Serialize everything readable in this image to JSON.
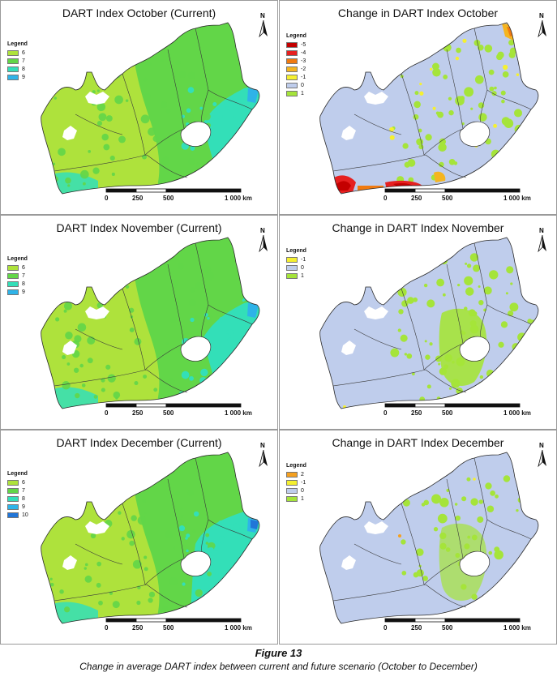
{
  "panels": [
    {
      "title": "DART Index October (Current)",
      "legend_title": "Legend",
      "variant": "current",
      "legend": [
        {
          "label": "6",
          "color": "#aee23c"
        },
        {
          "label": "7",
          "color": "#62d648"
        },
        {
          "label": "8",
          "color": "#33dfb8"
        },
        {
          "label": "9",
          "color": "#2fb3e8"
        }
      ]
    },
    {
      "title": "Change in DART Index October",
      "legend_title": "Legend",
      "variant": "change",
      "legend": [
        {
          "label": "-5",
          "color": "#c40000"
        },
        {
          "label": "-4",
          "color": "#e62020"
        },
        {
          "label": "-3",
          "color": "#f07a10"
        },
        {
          "label": "-2",
          "color": "#f5b520"
        },
        {
          "label": "-1",
          "color": "#f5f030"
        },
        {
          "label": "0",
          "color": "#bfcdec"
        },
        {
          "label": "1",
          "color": "#a5e43a"
        }
      ]
    },
    {
      "title": "DART Index November (Current)",
      "legend_title": "Legend",
      "variant": "current",
      "legend": [
        {
          "label": "6",
          "color": "#aee23c"
        },
        {
          "label": "7",
          "color": "#62d648"
        },
        {
          "label": "8",
          "color": "#33dfb8"
        },
        {
          "label": "9",
          "color": "#2fb3e8"
        }
      ]
    },
    {
      "title": "Change in DART Index November",
      "legend_title": "Legend",
      "variant": "change",
      "legend": [
        {
          "label": "-1",
          "color": "#f5f030"
        },
        {
          "label": "0",
          "color": "#bfcdec"
        },
        {
          "label": "1",
          "color": "#a5e43a"
        }
      ]
    },
    {
      "title": "DART Index December (Current)",
      "legend_title": "Legend",
      "variant": "current",
      "legend": [
        {
          "label": "6",
          "color": "#aee23c"
        },
        {
          "label": "7",
          "color": "#62d648"
        },
        {
          "label": "8",
          "color": "#33dfb8"
        },
        {
          "label": "9",
          "color": "#2fb3e8"
        },
        {
          "label": "10",
          "color": "#2176d8"
        }
      ]
    },
    {
      "title": "Change in DART Index December",
      "legend_title": "Legend",
      "variant": "change",
      "legend": [
        {
          "label": "2",
          "color": "#f5a020"
        },
        {
          "label": "-1",
          "color": "#f5f030"
        },
        {
          "label": "0",
          "color": "#bfcdec"
        },
        {
          "label": "1",
          "color": "#a5e43a"
        }
      ]
    }
  ],
  "scale_labels": [
    "0",
    "250",
    "500",
    "1 000 km"
  ],
  "north_label": "N",
  "caption": {
    "figure": "Figure 13",
    "text": "Change in average DART index between current and future scenario (October to December)"
  }
}
